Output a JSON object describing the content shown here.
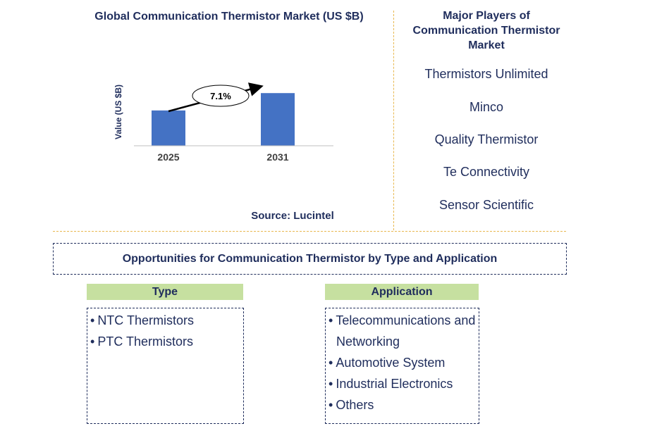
{
  "chart_data": {
    "type": "bar",
    "title": "Global Communication Thermistor Market (US $B)",
    "categories": [
      "2025",
      "2031"
    ],
    "values": [
      57,
      85
    ],
    "ylabel": "Value (US $B)",
    "ylim": [
      0,
      100
    ],
    "annotation": "7.1%",
    "source": "Source: Lucintel",
    "bar_color": "#4472c4"
  },
  "players": {
    "title": "Major Players of Communication Thermistor Market",
    "items": [
      "Thermistors Unlimited",
      "Minco",
      "Quality Thermistor",
      "Te Connectivity",
      "Sensor Scientific"
    ]
  },
  "opportunities": {
    "title": "Opportunities for Communication Thermistor by Type and Application",
    "type": {
      "header": "Type",
      "items": [
        "NTC Thermistors",
        "PTC Thermistors"
      ]
    },
    "application": {
      "header": "Application",
      "items": [
        "Telecommunications and Networking",
        "Automotive System",
        "Industrial Electronics",
        "Others"
      ]
    }
  },
  "colors": {
    "text": "#1f2d5c",
    "header_fill": "#c6e0a0",
    "divider": "#e8b84f"
  }
}
